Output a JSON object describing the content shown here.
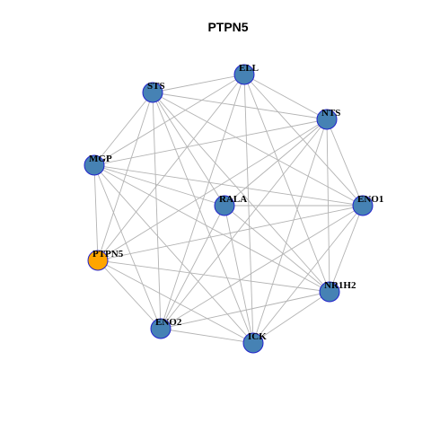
{
  "title": "PTPN5",
  "nodes": [
    {
      "label": "ELL",
      "color": "#4682b4"
    },
    {
      "label": "STS",
      "color": "#4682b4"
    },
    {
      "label": "NTS",
      "color": "#4682b4"
    },
    {
      "label": "MGP",
      "color": "#4682b4"
    },
    {
      "label": "RALA",
      "color": "#4682b4"
    },
    {
      "label": "ENO1",
      "color": "#4682b4"
    },
    {
      "label": "PTPN5",
      "color": "#ffa500"
    },
    {
      "label": "NR1H2",
      "color": "#4682b4"
    },
    {
      "label": "ENO2",
      "color": "#4682b4"
    },
    {
      "label": "ICK",
      "color": "#4682b4"
    }
  ]
}
